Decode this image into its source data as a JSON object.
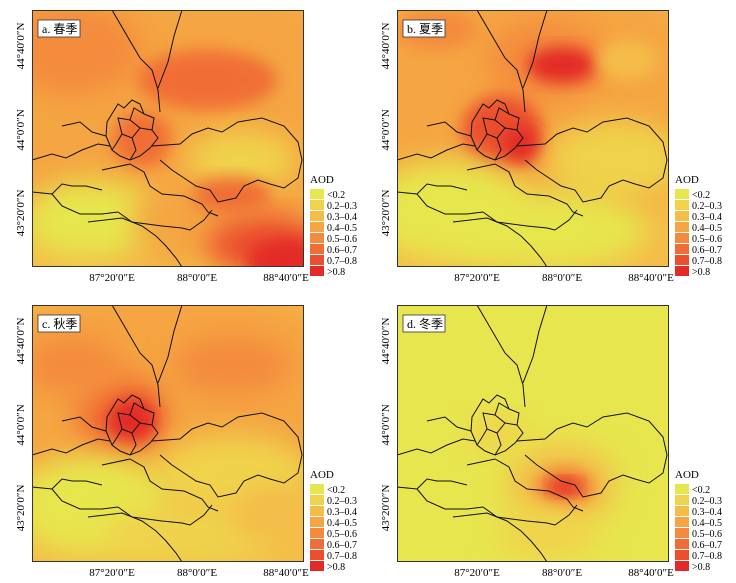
{
  "panels": [
    {
      "id": "a",
      "title": "a. 春季",
      "season": "spring"
    },
    {
      "id": "b",
      "title": "b. 夏季",
      "season": "summer"
    },
    {
      "id": "c",
      "title": "c. 秋季",
      "season": "autumn"
    },
    {
      "id": "d",
      "title": "d. 冬季",
      "season": "winter"
    }
  ],
  "axes": {
    "lat_ticks": [
      "44°40′0″N",
      "44°0′0″N",
      "43°20′0″N"
    ],
    "lon_ticks": [
      "87°20′0″E",
      "88°0′0″E",
      "88°40′0″E"
    ]
  },
  "legend": {
    "title": "AOD",
    "classes": [
      {
        "label": "<0.2",
        "color": "#e7e64e"
      },
      {
        "label": "0.2–0.3",
        "color": "#f0d34c"
      },
      {
        "label": "0.3–0.4",
        "color": "#f4bd48"
      },
      {
        "label": "0.4–0.5",
        "color": "#f5a543"
      },
      {
        "label": "0.5–0.6",
        "color": "#f48b3c"
      },
      {
        "label": "0.6–0.7",
        "color": "#f06e35"
      },
      {
        "label": "0.7–0.8",
        "color": "#eb4f2e"
      },
      {
        "label": ">0.8",
        "color": "#e32a26"
      }
    ]
  }
}
